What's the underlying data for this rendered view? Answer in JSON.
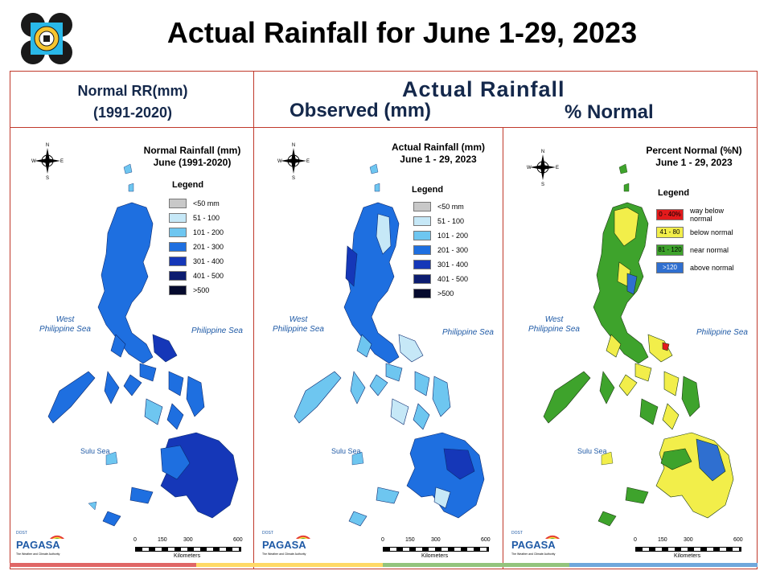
{
  "title": "Actual Rainfall for June 1-29, 2023",
  "headers": {
    "normal_line1": "Normal RR(mm)",
    "normal_line2": "(1991-2020)",
    "actual": "Actual Rainfall",
    "observed": "Observed (mm)",
    "percent": "% Normal"
  },
  "panels": [
    {
      "title_line1": "Normal Rainfall (mm)",
      "title_line2": "June (1991-2020)",
      "legend_title": "Legend",
      "legend": [
        {
          "label": "<50 mm",
          "color": "#c8c8c8"
        },
        {
          "label": "51 - 100",
          "color": "#c6e8f7"
        },
        {
          "label": "101 - 200",
          "color": "#6ec6f0"
        },
        {
          "label": "201 - 300",
          "color": "#1e6fe0"
        },
        {
          "label": "301 - 400",
          "color": "#1537b8"
        },
        {
          "label": "401 - 500",
          "color": "#0c1c70"
        },
        {
          "label": ">500",
          "color": "#050a2e"
        }
      ],
      "sea_west": "West\nPhilippine Sea",
      "sea_east": "Philippine Sea",
      "sea_sulu": "Sulu Sea",
      "scale_ticks": [
        "0",
        "150",
        "300",
        "600"
      ],
      "scale_unit": "Kilometers"
    },
    {
      "title_line1": "Actual Rainfall (mm)",
      "title_line2": "June 1 - 29, 2023",
      "legend_title": "Legend",
      "legend": [
        {
          "label": "<50 mm",
          "color": "#c8c8c8"
        },
        {
          "label": "51 - 100",
          "color": "#c6e8f7"
        },
        {
          "label": "101 - 200",
          "color": "#6ec6f0"
        },
        {
          "label": "201 - 300",
          "color": "#1e6fe0"
        },
        {
          "label": "301 - 400",
          "color": "#1537b8"
        },
        {
          "label": "401 - 500",
          "color": "#0c1c70"
        },
        {
          "label": ">500",
          "color": "#050a2e"
        }
      ],
      "sea_west": "West\nPhilippine Sea",
      "sea_east": "Philippine Sea",
      "sea_sulu": "Sulu Sea",
      "scale_ticks": [
        "0",
        "150",
        "300",
        "600"
      ],
      "scale_unit": "Kilometers"
    },
    {
      "title_line1": "Percent Normal (%N)",
      "title_line2": "June 1 - 29, 2023",
      "legend_title": "Legend",
      "legend": [
        {
          "swatch": "0 - 40%",
          "label": "way below normal",
          "color": "#e31a1c"
        },
        {
          "swatch": "41 - 80",
          "label": "below normal",
          "color": "#f2ee4a"
        },
        {
          "swatch": "81 - 120",
          "label": "near normal",
          "color": "#3ea32c"
        },
        {
          "swatch": ">120",
          "label": "above normal",
          "color": "#2f6fd0"
        }
      ],
      "sea_west": "West\nPhilippine Sea",
      "sea_east": "Philippine Sea",
      "sea_sulu": "Sulu Sea",
      "scale_ticks": [
        "0",
        "150",
        "300",
        "600"
      ],
      "scale_unit": "Kilometers"
    }
  ],
  "compass": {
    "n": "N",
    "s": "S",
    "e": "E",
    "w": "W"
  },
  "logo": {
    "agency": "PAGASA",
    "prefix": "DOST",
    "tagline": "The Weather and Climate Authority"
  },
  "strip_colors": [
    "#e06666",
    "#ffd966",
    "#93c47d",
    "#6fa8dc"
  ]
}
